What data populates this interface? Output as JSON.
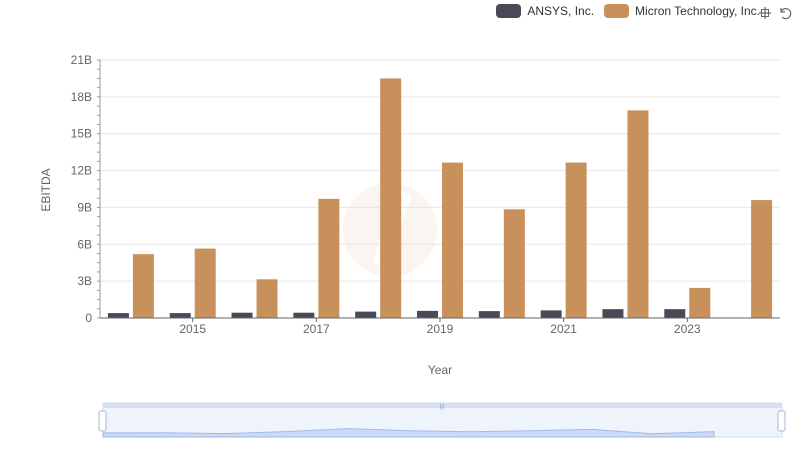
{
  "chart_data": {
    "type": "bar",
    "title": "",
    "xlabel": "Year",
    "ylabel": "EBITDA",
    "ylim": [
      0,
      21000000000
    ],
    "yticks": [
      {
        "value": 0,
        "label": "0"
      },
      {
        "value": 3000000000,
        "label": "3B"
      },
      {
        "value": 6000000000,
        "label": "6B"
      },
      {
        "value": 9000000000,
        "label": "9B"
      },
      {
        "value": 12000000000,
        "label": "12B"
      },
      {
        "value": 15000000000,
        "label": "15B"
      },
      {
        "value": 18000000000,
        "label": "18B"
      },
      {
        "value": 21000000000,
        "label": "21B"
      }
    ],
    "categories": [
      "2014",
      "2015",
      "2016",
      "2017",
      "2018",
      "2019",
      "2020",
      "2021",
      "2022",
      "2023",
      "2024"
    ],
    "xtick_labels": [
      "",
      "2015",
      "",
      "2017",
      "",
      "2019",
      "",
      "2021",
      "",
      "2023",
      ""
    ],
    "grid": true,
    "legend_position": "top-right",
    "series": [
      {
        "name": "ANSYS, Inc.",
        "color": "#4a4a56",
        "values": [
          400000000,
          400000000,
          430000000,
          430000000,
          520000000,
          580000000,
          560000000,
          620000000,
          720000000,
          720000000,
          null
        ]
      },
      {
        "name": "Micron Technology, Inc.",
        "color": "#c8915c",
        "values": [
          5200000000,
          5650000000,
          3150000000,
          9700000000,
          19500000000,
          12650000000,
          8850000000,
          12650000000,
          16900000000,
          2450000000,
          9600000000
        ]
      }
    ]
  },
  "zoom": {
    "start": 0,
    "end": 100
  }
}
